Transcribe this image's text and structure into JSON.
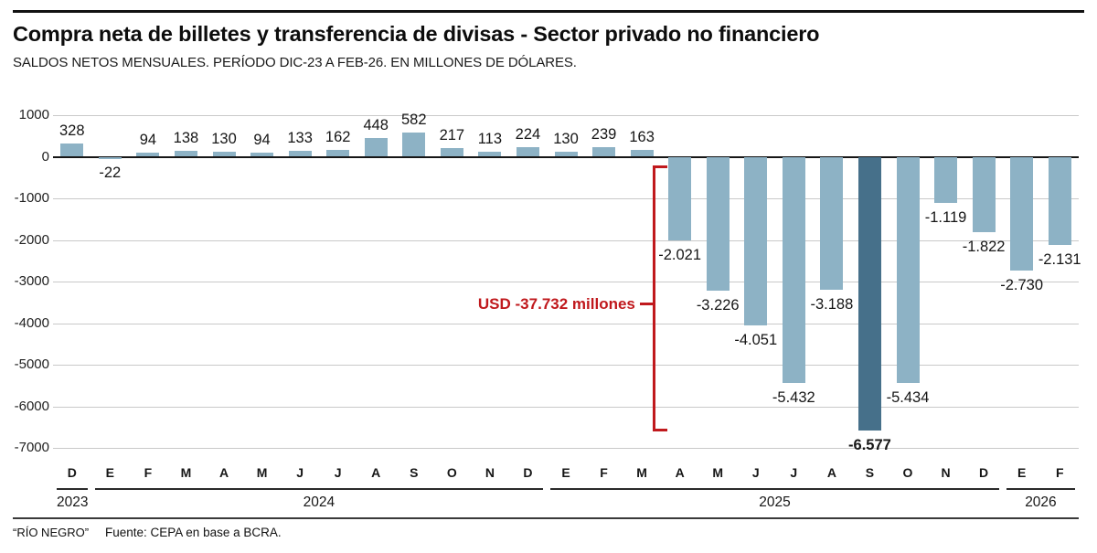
{
  "header": {
    "title": "Compra neta de billetes y transferencia de divisas - Sector privado no financiero",
    "subtitle": "SALDOS NETOS MENSUALES. PERÍODO DIC-23 A FEB-26. EN MILLONES DE DÓLARES."
  },
  "footer": {
    "brand": "“RÍO NEGRO”",
    "source": "Fuente: CEPA en base a BCRA."
  },
  "chart_data": {
    "type": "bar",
    "title": "Compra neta de billetes y transferencia de divisas - Sector privado no financiero",
    "subtitle": "Saldos netos mensuales Dic-23 a Feb-26, en millones de dólares",
    "ylim": [
      -7000,
      1000
    ],
    "ytick_step": 1000,
    "yticks": [
      1000,
      0,
      -1000,
      -2000,
      -3000,
      -4000,
      -5000,
      -6000,
      -7000
    ],
    "ytick_labels": [
      "1000",
      "0",
      "-1000",
      "-2000",
      "-3000",
      "-4000",
      "-5000",
      "-6000",
      "-7000"
    ],
    "grid": true,
    "legend": "none",
    "colors": {
      "bar": "#8db2c5",
      "bar_highlight": "#46708a",
      "annotation": "#c0191d",
      "gridline": "#c9c9c9",
      "zeroline": "#161616"
    },
    "points": [
      {
        "month": "D",
        "year": "2023",
        "value": 328,
        "label": "328",
        "highlight": false
      },
      {
        "month": "E",
        "year": "2024",
        "value": -22,
        "label": "-22",
        "highlight": false
      },
      {
        "month": "F",
        "year": "2024",
        "value": 94,
        "label": "94",
        "highlight": false
      },
      {
        "month": "M",
        "year": "2024",
        "value": 138,
        "label": "138",
        "highlight": false
      },
      {
        "month": "A",
        "year": "2024",
        "value": 130,
        "label": "130",
        "highlight": false
      },
      {
        "month": "M",
        "year": "2024",
        "value": 94,
        "label": "94",
        "highlight": false
      },
      {
        "month": "J",
        "year": "2024",
        "value": 133,
        "label": "133",
        "highlight": false
      },
      {
        "month": "J",
        "year": "2024",
        "value": 162,
        "label": "162",
        "highlight": false
      },
      {
        "month": "A",
        "year": "2024",
        "value": 448,
        "label": "448",
        "highlight": false
      },
      {
        "month": "S",
        "year": "2024",
        "value": 582,
        "label": "582",
        "highlight": false
      },
      {
        "month": "O",
        "year": "2024",
        "value": 217,
        "label": "217",
        "highlight": false
      },
      {
        "month": "N",
        "year": "2024",
        "value": 113,
        "label": "113",
        "highlight": false
      },
      {
        "month": "D",
        "year": "2024",
        "value": 224,
        "label": "224",
        "highlight": false
      },
      {
        "month": "E",
        "year": "2025",
        "value": 130,
        "label": "130",
        "highlight": false
      },
      {
        "month": "F",
        "year": "2025",
        "value": 239,
        "label": "239",
        "highlight": false
      },
      {
        "month": "M",
        "year": "2025",
        "value": 163,
        "label": "163",
        "highlight": false
      },
      {
        "month": "A",
        "year": "2025",
        "value": -2021,
        "label": "-2.021",
        "highlight": false
      },
      {
        "month": "M",
        "year": "2025",
        "value": -3226,
        "label": "-3.226",
        "highlight": false
      },
      {
        "month": "J",
        "year": "2025",
        "value": -4051,
        "label": "-4.051",
        "highlight": false
      },
      {
        "month": "J",
        "year": "2025",
        "value": -5432,
        "label": "-5.432",
        "highlight": false
      },
      {
        "month": "A",
        "year": "2025",
        "value": -3188,
        "label": "-3.188",
        "highlight": false
      },
      {
        "month": "S",
        "year": "2025",
        "value": -6577,
        "label": "-6.577",
        "highlight": true
      },
      {
        "month": "O",
        "year": "2025",
        "value": -5434,
        "label": "-5.434",
        "highlight": false
      },
      {
        "month": "N",
        "year": "2025",
        "value": -1119,
        "label": "-1.119",
        "highlight": false
      },
      {
        "month": "D",
        "year": "2025",
        "value": -1822,
        "label": "-1.822",
        "highlight": false
      },
      {
        "month": "E",
        "year": "2026",
        "value": -2730,
        "label": "-2.730",
        "highlight": false
      },
      {
        "month": "F",
        "year": "2026",
        "value": -2131,
        "label": "-2.131",
        "highlight": false
      }
    ],
    "year_groups": [
      {
        "label": "2023",
        "start": 0,
        "count": 1
      },
      {
        "label": "2024",
        "start": 1,
        "count": 12
      },
      {
        "label": "2025",
        "start": 13,
        "count": 12
      },
      {
        "label": "2026",
        "start": 25,
        "count": 2
      }
    ],
    "annotation": {
      "label": "USD -37.732 millones",
      "total": -37732,
      "span_start_index": 16,
      "span_end_index": 26
    }
  }
}
